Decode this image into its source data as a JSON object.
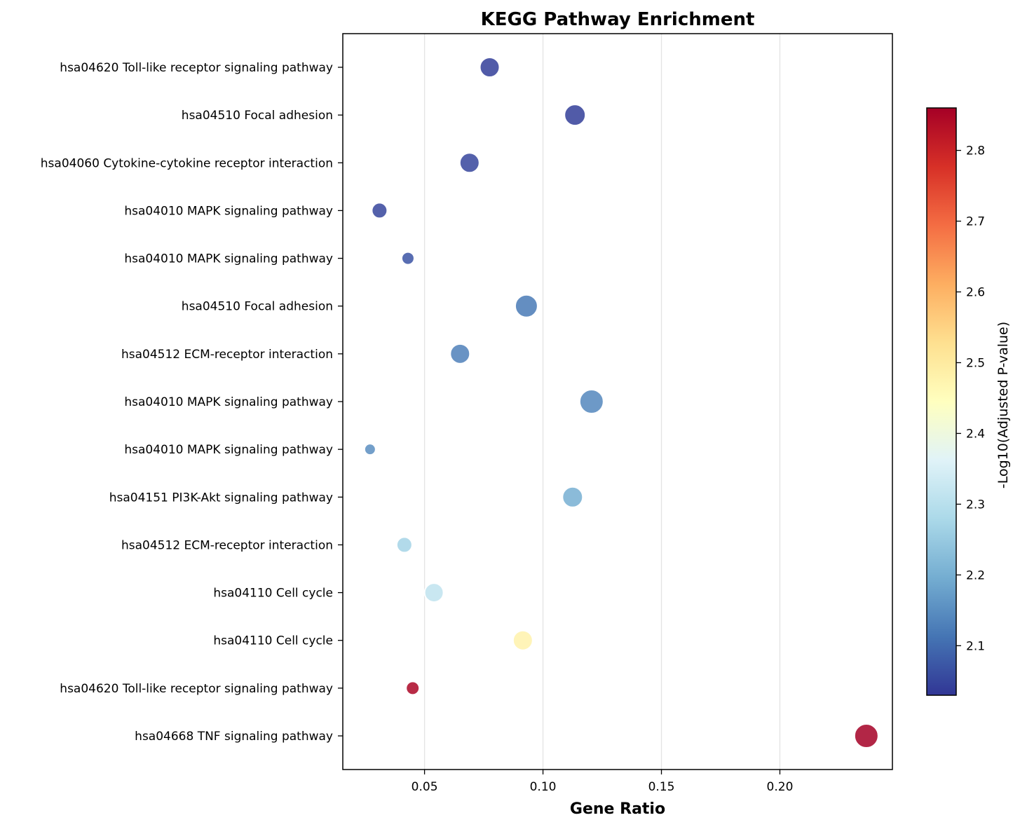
{
  "chart_data": {
    "type": "scatter",
    "title": "KEGG Pathway Enrichment",
    "xlabel": "Gene Ratio",
    "ylabel": "",
    "xlim": [
      0.0155,
      0.2475
    ],
    "xticks": [
      0.05,
      0.1,
      0.15,
      0.2
    ],
    "xtick_labels": [
      "0.05",
      "0.10",
      "0.15",
      "0.20"
    ],
    "grid": "vertical",
    "colorbar": {
      "label": "-Log10(Adjusted P-value)",
      "range": [
        2.03,
        2.86
      ],
      "ticks": [
        2.1,
        2.2,
        2.3,
        2.4,
        2.5,
        2.6,
        2.7,
        2.8
      ],
      "tick_labels": [
        "2.1",
        "2.2",
        "2.3",
        "2.4",
        "2.5",
        "2.6",
        "2.7",
        "2.8"
      ],
      "colormap": "RdYlBu_r",
      "stops": [
        "#313695",
        "#4575b4",
        "#74add1",
        "#abd9e9",
        "#e0f3f8",
        "#ffffbf",
        "#fee090",
        "#fdae61",
        "#f46d43",
        "#d73027",
        "#a50026"
      ]
    },
    "points": [
      {
        "label": "hsa04620 Toll-like receptor signaling pathway",
        "x": 0.0775,
        "neglog10_padj": 2.04,
        "size": 26
      },
      {
        "label": "hsa04510 Focal adhesion",
        "x": 0.1135,
        "neglog10_padj": 2.04,
        "size": 28
      },
      {
        "label": "hsa04060 Cytokine-cytokine receptor interaction",
        "x": 0.069,
        "neglog10_padj": 2.05,
        "size": 26
      },
      {
        "label": "hsa04010 MAPK signaling pathway",
        "x": 0.031,
        "neglog10_padj": 2.05,
        "size": 20
      },
      {
        "label": "hsa04010 MAPK signaling pathway",
        "x": 0.043,
        "neglog10_padj": 2.07,
        "size": 16
      },
      {
        "label": "hsa04510 Focal adhesion",
        "x": 0.093,
        "neglog10_padj": 2.12,
        "size": 30
      },
      {
        "label": "hsa04512 ECM-receptor interaction",
        "x": 0.065,
        "neglog10_padj": 2.13,
        "size": 26
      },
      {
        "label": "hsa04010 MAPK signaling pathway",
        "x": 0.1205,
        "neglog10_padj": 2.14,
        "size": 32
      },
      {
        "label": "hsa04010 MAPK signaling pathway",
        "x": 0.027,
        "neglog10_padj": 2.15,
        "size": 14
      },
      {
        "label": "hsa04151 PI3K-Akt signaling pathway",
        "x": 0.1125,
        "neglog10_padj": 2.2,
        "size": 27
      },
      {
        "label": "hsa04512 ECM-receptor interaction",
        "x": 0.0415,
        "neglog10_padj": 2.27,
        "size": 20
      },
      {
        "label": "hsa04110 Cell cycle",
        "x": 0.054,
        "neglog10_padj": 2.31,
        "size": 25
      },
      {
        "label": "hsa04110 Cell cycle",
        "x": 0.0915,
        "neglog10_padj": 2.48,
        "size": 26
      },
      {
        "label": "hsa04620 Toll-like receptor signaling pathway",
        "x": 0.045,
        "neglog10_padj": 2.85,
        "size": 17
      },
      {
        "label": "hsa04668 TNF signaling pathway",
        "x": 0.2365,
        "neglog10_padj": 2.86,
        "size": 32
      }
    ]
  }
}
